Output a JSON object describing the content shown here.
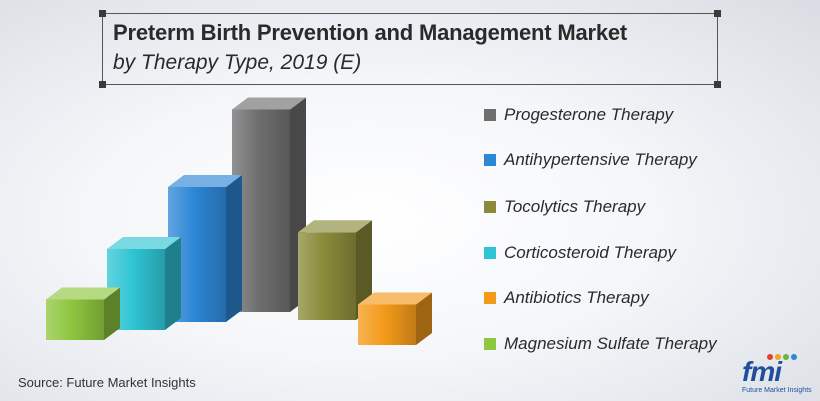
{
  "title": {
    "main": "Preterm Birth Prevention and Management Market",
    "sub": "by Therapy Type, 2019 (E)"
  },
  "source": "Source: Future Market Insights",
  "logo": {
    "text": "fmi",
    "tagline": "Future Market Insights"
  },
  "chart_data": {
    "type": "bar",
    "style": "3d-columns",
    "categories": [
      "Magnesium Sulfate Therapy",
      "Corticosteroid Therapy",
      "Antihypertensive Therapy",
      "Progesterone Therapy",
      "Tocolytics Therapy",
      "Antibiotics Therapy"
    ],
    "values": [
      3,
      6,
      10,
      15,
      6.5,
      3
    ],
    "colors": [
      "#8dc63f",
      "#2fc4d4",
      "#2d86d6",
      "#6e6e6e",
      "#8a8a3a",
      "#f39a1a"
    ],
    "ylim": [
      0,
      16
    ],
    "grid": false,
    "legend_position": "right"
  },
  "legend": [
    {
      "label": "Progesterone Therapy",
      "color": "#6e6e6e"
    },
    {
      "label": "Antihypertensive Therapy",
      "color": "#2d86d6"
    },
    {
      "label": "Tocolytics Therapy",
      "color": "#8a8a3a"
    },
    {
      "label": "Corticosteroid Therapy",
      "color": "#2fc4d4"
    },
    {
      "label": "Antibiotics Therapy",
      "color": "#f39a1a"
    },
    {
      "label": "Magnesium Sulfate Therapy",
      "color": "#8dc63f"
    }
  ]
}
